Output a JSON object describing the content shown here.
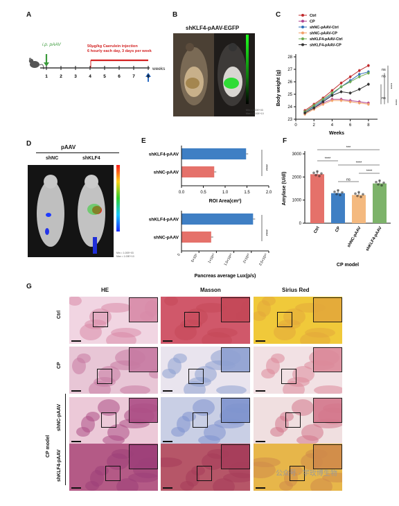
{
  "panels": {
    "A": {
      "letter": "A",
      "route": "i.p. pAAV",
      "injection_line1": "50μg/kg Caerulein injection",
      "injection_line2": "6 hourly each day, 3 days per week",
      "weeks": [
        "1",
        "2",
        "3",
        "4",
        "5",
        "6",
        "7",
        "8"
      ],
      "weeks_unit": "weeks"
    },
    "B": {
      "letter": "B",
      "title": "shKLF4-pAAV-EGFP",
      "scale_min": "Min = 1.00E+03",
      "scale_max": "Max = 1.00E+10"
    },
    "C": {
      "letter": "C",
      "legend": [
        "Ctrl",
        "CP",
        "shNC-pAAV-Ctrl",
        "shNC-pAAV-CP",
        "shKLF4-pAAV-Ctrl",
        "shKLF4-pAAV-CP"
      ],
      "colors": [
        "#c0292b",
        "#b0438f",
        "#2f6fb8",
        "#f2a06a",
        "#6aa84f",
        "#333333"
      ],
      "sig": [
        "ns",
        "ns",
        "****",
        "****",
        "ns"
      ]
    },
    "D": {
      "letter": "D",
      "header": "pAAV",
      "col1": "shNC",
      "col2": "shKLF4",
      "scale_min": "Min = 1.00E+03",
      "scale_max": "Max = 1.00E+10"
    },
    "E": {
      "letter": "E",
      "sig1": "****",
      "sig2": "****"
    },
    "F": {
      "letter": "F",
      "xlabel": "CP model",
      "sig": [
        "***",
        "****",
        "****",
        "ns",
        "****"
      ]
    },
    "G": {
      "letter": "G",
      "columns": [
        "HE",
        "Masson",
        "Sirius Red"
      ],
      "rows": [
        "Ctrl",
        "CP",
        "shNC-pAAV",
        "shKLF4-pAAV"
      ],
      "cp_model": "CP model"
    }
  },
  "watermark": "公众号 · 宇玫博生物",
  "chart_data": [
    {
      "type": "line",
      "title": "",
      "xlabel": "Weeks",
      "ylabel": "Body weight (g)",
      "xlim": [
        0,
        9
      ],
      "ylim": [
        23,
        28
      ],
      "xticks": [
        0,
        2,
        4,
        6,
        8
      ],
      "yticks": [
        23,
        24,
        25,
        26,
        27,
        28
      ],
      "x": [
        1,
        2,
        3,
        4,
        5,
        6,
        7,
        8
      ],
      "series": [
        {
          "name": "Ctrl",
          "values": [
            23.7,
            24.2,
            24.7,
            25.3,
            25.9,
            26.4,
            26.9,
            27.3
          ]
        },
        {
          "name": "CP",
          "values": [
            23.5,
            23.9,
            24.3,
            24.6,
            24.6,
            24.5,
            24.4,
            24.3
          ]
        },
        {
          "name": "shNC-pAAV-Ctrl",
          "values": [
            23.6,
            24.0,
            24.5,
            25.0,
            25.6,
            26.1,
            26.6,
            26.8
          ]
        },
        {
          "name": "shNC-pAAV-CP",
          "values": [
            23.4,
            23.8,
            24.2,
            24.5,
            24.5,
            24.4,
            24.3,
            24.2
          ]
        },
        {
          "name": "shKLF4-pAAV-Ctrl",
          "values": [
            23.6,
            24.1,
            24.6,
            25.1,
            25.6,
            26.0,
            26.4,
            26.7
          ]
        },
        {
          "name": "shKLF4-pAAV-CP",
          "values": [
            23.5,
            23.9,
            24.4,
            24.9,
            25.2,
            25.1,
            25.4,
            25.8
          ]
        }
      ]
    },
    {
      "type": "bar",
      "orientation": "horizontal",
      "categories": [
        "shKLF4-pAAV",
        "shNC-pAAV"
      ],
      "values": [
        1.48,
        0.75
      ],
      "colors": [
        "#3f7fc4",
        "#e5716a"
      ],
      "xlabel": "ROI Area(cm²)",
      "xlim": [
        0,
        2.0
      ],
      "xticks": [
        "0.0",
        "0.5",
        "1.0",
        "1.5",
        "2.0"
      ]
    },
    {
      "type": "bar",
      "orientation": "horizontal",
      "categories": [
        "shKLF4-pAAV",
        "shNC-pAAV"
      ],
      "values": [
        20500000000,
        8500000000
      ],
      "colors": [
        "#3f7fc4",
        "#e5716a"
      ],
      "xlabel": "Pancreas average Lux(p/s)",
      "xlim": [
        0,
        25000000000
      ],
      "xticks": [
        "0",
        "5×10⁹",
        "1×10¹⁰",
        "1.5×10¹⁰",
        "2×10¹⁰",
        "2.5×10¹⁰"
      ]
    },
    {
      "type": "bar",
      "categories": [
        "Ctrl",
        "CP",
        "shNC-pAAV",
        "shKLF4-pAAV"
      ],
      "values": [
        2120,
        1300,
        1220,
        1720
      ],
      "colors": [
        "#e5716a",
        "#3f7fc4",
        "#f4b97f",
        "#7db36a"
      ],
      "xlabel": "CP model",
      "ylabel": "Amylase (U/dl)",
      "ylim": [
        0,
        3000
      ],
      "yticks": [
        0,
        1000,
        2000,
        3000
      ]
    }
  ]
}
